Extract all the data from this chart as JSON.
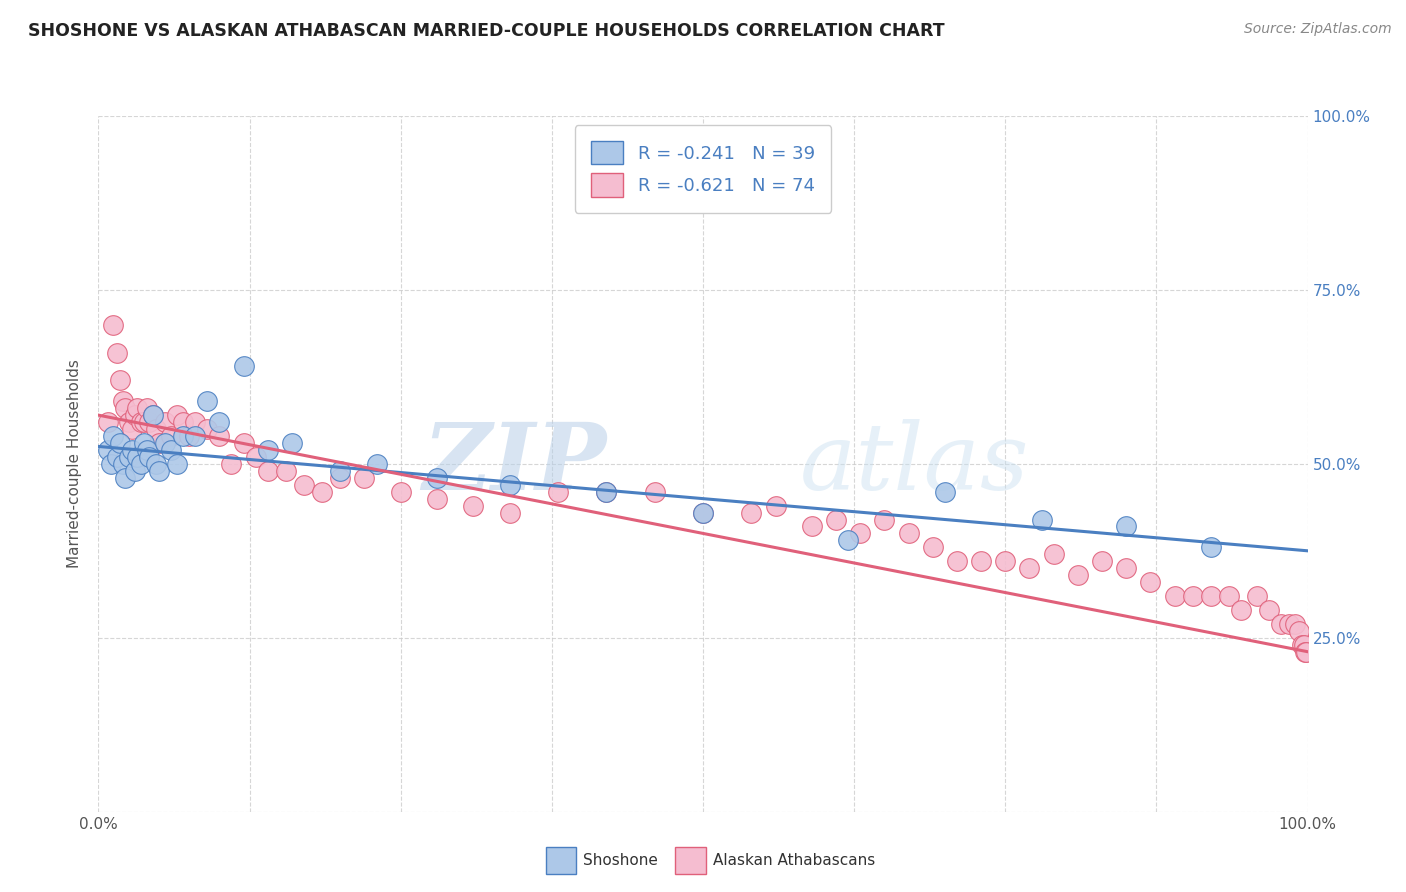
{
  "title": "SHOSHONE VS ALASKAN ATHABASCAN MARRIED-COUPLE HOUSEHOLDS CORRELATION CHART",
  "source": "Source: ZipAtlas.com",
  "ylabel": "Married-couple Households",
  "xlim": [
    0,
    1
  ],
  "ylim": [
    0,
    1
  ],
  "xticks": [
    0.0,
    0.125,
    0.25,
    0.375,
    0.5,
    0.625,
    0.75,
    0.875,
    1.0
  ],
  "yticks": [
    0.0,
    0.25,
    0.5,
    0.75,
    1.0
  ],
  "shoshone_color": "#adc8e8",
  "shoshone_line_color": "#4a7fc1",
  "athabascan_color": "#f5bdd0",
  "athabascan_line_color": "#e0607a",
  "legend_r_shoshone": "-0.241",
  "legend_n_shoshone": "39",
  "legend_r_athabascan": "-0.621",
  "legend_n_athabascan": "74",
  "shoshone_label": "Shoshone",
  "athabascan_label": "Alaskan Athabascans",
  "watermark_zip": "ZIP",
  "watermark_atlas": "atlas",
  "background_color": "#ffffff",
  "grid_color": "#cccccc",
  "shoshone_x": [
    0.008,
    0.01,
    0.012,
    0.015,
    0.018,
    0.02,
    0.022,
    0.025,
    0.028,
    0.03,
    0.032,
    0.035,
    0.038,
    0.04,
    0.042,
    0.045,
    0.048,
    0.05,
    0.055,
    0.06,
    0.065,
    0.07,
    0.08,
    0.09,
    0.1,
    0.12,
    0.14,
    0.16,
    0.2,
    0.23,
    0.28,
    0.34,
    0.42,
    0.5,
    0.62,
    0.7,
    0.78,
    0.85,
    0.92
  ],
  "shoshone_y": [
    0.52,
    0.5,
    0.54,
    0.51,
    0.53,
    0.5,
    0.48,
    0.51,
    0.52,
    0.49,
    0.51,
    0.5,
    0.53,
    0.52,
    0.51,
    0.57,
    0.5,
    0.49,
    0.53,
    0.52,
    0.5,
    0.54,
    0.54,
    0.59,
    0.56,
    0.64,
    0.52,
    0.53,
    0.49,
    0.5,
    0.48,
    0.47,
    0.46,
    0.43,
    0.39,
    0.46,
    0.42,
    0.41,
    0.38
  ],
  "athabascan_x": [
    0.008,
    0.012,
    0.015,
    0.018,
    0.02,
    0.022,
    0.025,
    0.028,
    0.03,
    0.032,
    0.035,
    0.038,
    0.04,
    0.042,
    0.045,
    0.048,
    0.05,
    0.055,
    0.06,
    0.065,
    0.07,
    0.075,
    0.08,
    0.09,
    0.1,
    0.11,
    0.12,
    0.13,
    0.14,
    0.155,
    0.17,
    0.185,
    0.2,
    0.22,
    0.25,
    0.28,
    0.31,
    0.34,
    0.38,
    0.42,
    0.46,
    0.5,
    0.54,
    0.56,
    0.59,
    0.61,
    0.63,
    0.65,
    0.67,
    0.69,
    0.71,
    0.73,
    0.75,
    0.77,
    0.79,
    0.81,
    0.83,
    0.85,
    0.87,
    0.89,
    0.905,
    0.92,
    0.935,
    0.945,
    0.958,
    0.968,
    0.978,
    0.985,
    0.99,
    0.993,
    0.995,
    0.997,
    0.998,
    0.999
  ],
  "athabascan_y": [
    0.56,
    0.7,
    0.66,
    0.62,
    0.59,
    0.58,
    0.56,
    0.55,
    0.57,
    0.58,
    0.56,
    0.56,
    0.58,
    0.56,
    0.57,
    0.55,
    0.53,
    0.56,
    0.54,
    0.57,
    0.56,
    0.54,
    0.56,
    0.55,
    0.54,
    0.5,
    0.53,
    0.51,
    0.49,
    0.49,
    0.47,
    0.46,
    0.48,
    0.48,
    0.46,
    0.45,
    0.44,
    0.43,
    0.46,
    0.46,
    0.46,
    0.43,
    0.43,
    0.44,
    0.41,
    0.42,
    0.4,
    0.42,
    0.4,
    0.38,
    0.36,
    0.36,
    0.36,
    0.35,
    0.37,
    0.34,
    0.36,
    0.35,
    0.33,
    0.31,
    0.31,
    0.31,
    0.31,
    0.29,
    0.31,
    0.29,
    0.27,
    0.27,
    0.27,
    0.26,
    0.24,
    0.24,
    0.23,
    0.23
  ]
}
